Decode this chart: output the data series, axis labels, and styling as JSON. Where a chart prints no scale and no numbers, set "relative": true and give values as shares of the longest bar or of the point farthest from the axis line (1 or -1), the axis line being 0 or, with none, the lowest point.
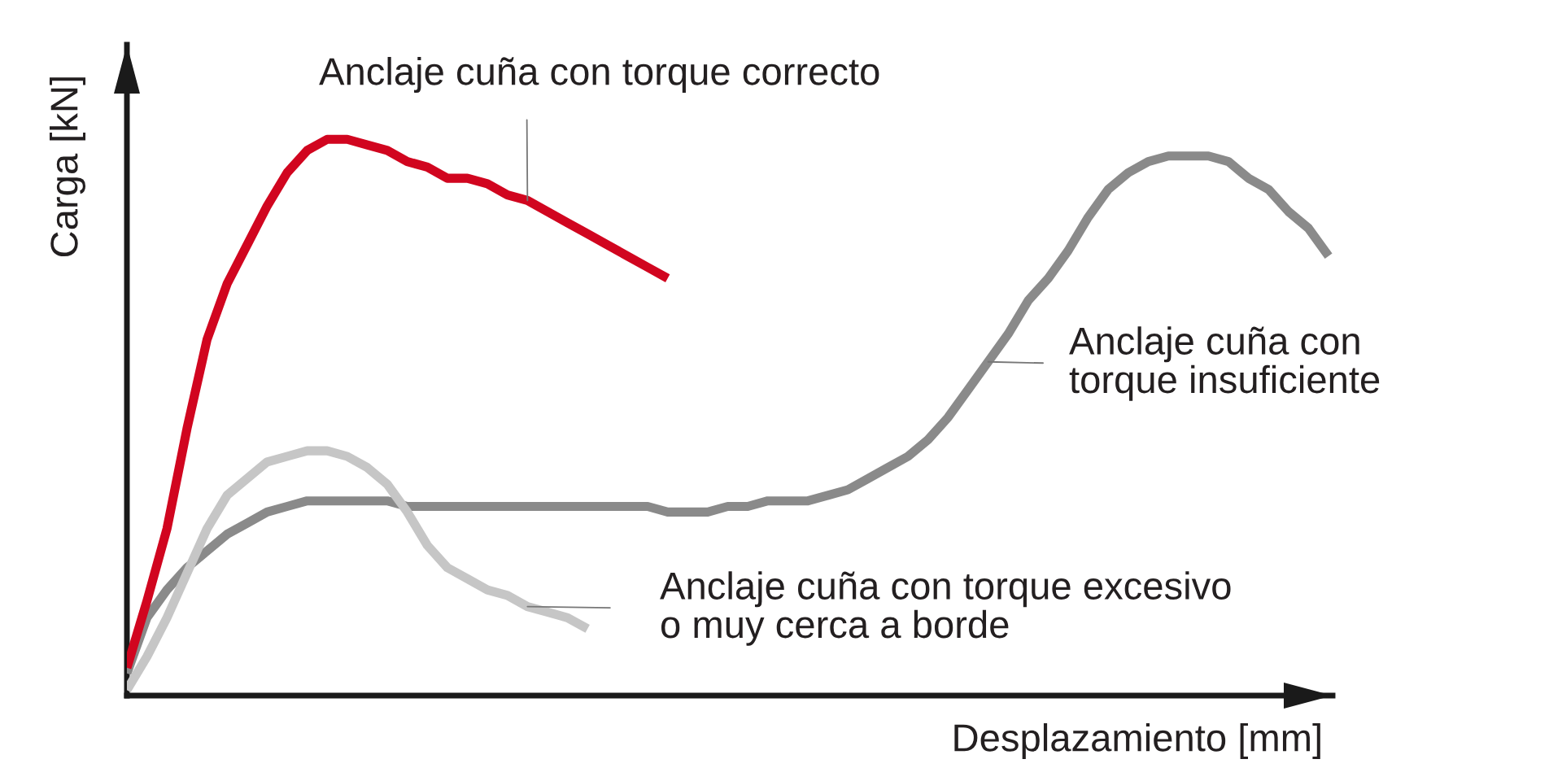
{
  "chart_data": {
    "type": "line",
    "relative": true,
    "xlabel": "Desplazamiento [mm]",
    "ylabel": "Carga [kN]",
    "categories": [
      null,
      null,
      null,
      null,
      null,
      null,
      null,
      null,
      null,
      null,
      null,
      null,
      null,
      null,
      null,
      null,
      null,
      null,
      null,
      null,
      null,
      null,
      null,
      null,
      null,
      null,
      null,
      null,
      null,
      null,
      null,
      null,
      null,
      null,
      null,
      null,
      null,
      null,
      null,
      null,
      null,
      null,
      null,
      null,
      null,
      null,
      null,
      null,
      null,
      null,
      null,
      null,
      null,
      null,
      null,
      null,
      null,
      null,
      null,
      null,
      null
    ],
    "series": [
      {
        "name": "Anclaje cuña con\ntorque insuficiente",
        "color": "#8a8a8a",
        "values": [
          0.04,
          0.14,
          0.19,
          0.23,
          0.26,
          0.29,
          0.31,
          0.33,
          0.34,
          0.35,
          0.35,
          0.35,
          0.35,
          0.35,
          0.34,
          0.34,
          0.34,
          0.34,
          0.34,
          0.34,
          0.34,
          0.34,
          0.34,
          0.34,
          0.34,
          0.34,
          0.34,
          0.33,
          0.33,
          0.33,
          0.34,
          0.34,
          0.35,
          0.35,
          0.35,
          0.36,
          0.37,
          0.39,
          0.41,
          0.43,
          0.46,
          0.5,
          0.55,
          0.6,
          0.65,
          0.71,
          0.75,
          0.8,
          0.86,
          0.91,
          0.94,
          0.96,
          0.97,
          0.97,
          0.97,
          0.96,
          0.93,
          0.91,
          0.87,
          0.84,
          0.79
        ]
      },
      {
        "name": "Anclaje cuña con torque excesivo\no muy cerca a borde",
        "color": "#c6c6c6",
        "values": [
          0.01,
          0.07,
          0.14,
          0.22,
          0.3,
          0.36,
          0.39,
          0.42,
          0.43,
          0.44,
          0.44,
          0.43,
          0.41,
          0.38,
          0.33,
          0.27,
          0.23,
          0.21,
          0.19,
          0.18,
          0.16,
          0.15,
          0.14,
          0.12,
          null,
          null,
          null,
          null,
          null,
          null,
          null,
          null,
          null,
          null,
          null,
          null,
          null,
          null,
          null,
          null,
          null,
          null,
          null,
          null,
          null,
          null,
          null,
          null,
          null,
          null,
          null,
          null,
          null,
          null,
          null,
          null,
          null,
          null,
          null,
          null,
          null
        ]
      },
      {
        "name": "Anclaje cuña con torque correcto",
        "color": "#d1051f",
        "values": [
          0.05,
          0.17,
          0.3,
          0.48,
          0.64,
          0.74,
          0.81,
          0.88,
          0.94,
          0.98,
          1.0,
          1.0,
          0.99,
          0.98,
          0.96,
          0.95,
          0.93,
          0.93,
          0.92,
          0.9,
          0.89,
          0.87,
          0.85,
          0.83,
          0.81,
          0.79,
          0.77,
          0.75,
          null,
          null,
          null,
          null,
          null,
          null,
          null,
          null,
          null,
          null,
          null,
          null,
          null,
          null,
          null,
          null,
          null,
          null,
          null,
          null,
          null,
          null,
          null,
          null,
          null,
          null,
          null,
          null,
          null,
          null,
          null,
          null,
          null
        ]
      }
    ]
  }
}
